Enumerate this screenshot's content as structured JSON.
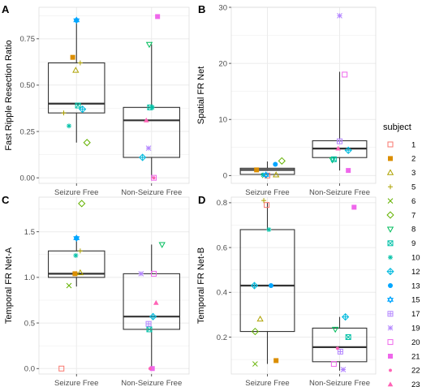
{
  "chart_data": [
    {
      "type": "box",
      "panel": "A",
      "ylabel": "Fast Ripple Resection Ratio",
      "xlabel": "",
      "categories": [
        "Seizure Free",
        "Non-Seizure Free"
      ],
      "ylim": [
        -0.03,
        0.92
      ],
      "yticks": [
        0.0,
        0.25,
        0.5,
        0.75
      ],
      "ytick_labels": [
        "0.00",
        "0.25",
        "0.50",
        "0.75"
      ],
      "grid": true,
      "boxes": [
        {
          "category": "Seizure Free",
          "min": 0.19,
          "q1": 0.35,
          "median": 0.4,
          "q3": 0.62,
          "max": 0.85
        },
        {
          "category": "Non-Seizure Free",
          "min": 0.0,
          "q1": 0.11,
          "median": 0.31,
          "q3": 0.38,
          "max": 0.72
        }
      ],
      "points": [
        {
          "group": "Seizure Free",
          "subject": "2",
          "y": 0.65,
          "jitter": -0.05
        },
        {
          "group": "Seizure Free",
          "subject": "3",
          "y": 0.58,
          "jitter": -0.01
        },
        {
          "group": "Seizure Free",
          "subject": "5",
          "y": 0.62,
          "jitter": 0.05
        },
        {
          "group": "Seizure Free",
          "subject": "5",
          "y": 0.35,
          "jitter": -0.17
        },
        {
          "group": "Seizure Free",
          "subject": "7",
          "y": 0.19,
          "jitter": 0.14
        },
        {
          "group": "Seizure Free",
          "subject": "9",
          "y": 0.39,
          "jitter": 0.02
        },
        {
          "group": "Seizure Free",
          "subject": "10",
          "y": 0.28,
          "jitter": -0.1
        },
        {
          "group": "Seizure Free",
          "subject": "12",
          "y": 0.37,
          "jitter": 0.08
        },
        {
          "group": "Seizure Free",
          "subject": "13",
          "y": 0.85,
          "jitter": 0.0
        },
        {
          "group": "Seizure Free",
          "subject": "15",
          "y": 0.85,
          "jitter": 0.0
        },
        {
          "group": "Non-Seizure Free",
          "subject": "8",
          "y": 0.72,
          "jitter": -0.03
        },
        {
          "group": "Non-Seizure Free",
          "subject": "9",
          "y": 0.38,
          "jitter": -0.02
        },
        {
          "group": "Non-Seizure Free",
          "subject": "10",
          "y": 0.38,
          "jitter": 0.01
        },
        {
          "group": "Non-Seizure Free",
          "subject": "12",
          "y": 0.11,
          "jitter": -0.12
        },
        {
          "group": "Non-Seizure Free",
          "subject": "19",
          "y": 0.16,
          "jitter": -0.04
        },
        {
          "group": "Non-Seizure Free",
          "subject": "20",
          "y": 0.0,
          "jitter": 0.03
        },
        {
          "group": "Non-Seizure Free",
          "subject": "21",
          "y": 0.87,
          "jitter": 0.08
        },
        {
          "group": "Non-Seizure Free",
          "subject": "22",
          "y": 0.0,
          "jitter": 0.03
        },
        {
          "group": "Non-Seizure Free",
          "subject": "23",
          "y": 0.31,
          "jitter": -0.07
        }
      ]
    },
    {
      "type": "box",
      "panel": "B",
      "ylabel": "Spatial FR Net",
      "xlabel": "",
      "categories": [
        "Seizure Free",
        "Non-Seizure Free"
      ],
      "ylim": [
        -1.4,
        30.0
      ],
      "yticks": [
        0,
        10,
        20,
        30
      ],
      "ytick_labels": [
        "0",
        "10",
        "20",
        "30"
      ],
      "grid": true,
      "boxes": [
        {
          "category": "Seizure Free",
          "min": 0.0,
          "q1": 0.2,
          "median": 1.0,
          "q3": 1.3,
          "max": 2.5
        },
        {
          "category": "Non-Seizure Free",
          "min": 0.9,
          "q1": 3.2,
          "median": 4.8,
          "q3": 6.2,
          "max": 18.5
        }
      ],
      "points": [
        {
          "group": "Seizure Free",
          "subject": "1",
          "y": 0.0,
          "jitter": 0.0
        },
        {
          "group": "Seizure Free",
          "subject": "2",
          "y": 1.0,
          "jitter": -0.15
        },
        {
          "group": "Seizure Free",
          "subject": "3",
          "y": 0.1,
          "jitter": 0.12
        },
        {
          "group": "Seizure Free",
          "subject": "6",
          "y": 0.0,
          "jitter": -0.04
        },
        {
          "group": "Seizure Free",
          "subject": "7",
          "y": 2.6,
          "jitter": 0.2
        },
        {
          "group": "Seizure Free",
          "subject": "10",
          "y": 0.1,
          "jitter": -0.06
        },
        {
          "group": "Seizure Free",
          "subject": "13",
          "y": 2.0,
          "jitter": 0.11
        },
        {
          "group": "Seizure Free",
          "subject": "15",
          "y": 0.1,
          "jitter": -0.02
        },
        {
          "group": "Non-Seizure Free",
          "subject": "8",
          "y": 2.8,
          "jitter": -0.1
        },
        {
          "group": "Non-Seizure Free",
          "subject": "9",
          "y": 2.9,
          "jitter": -0.08
        },
        {
          "group": "Non-Seizure Free",
          "subject": "12",
          "y": 4.5,
          "jitter": 0.12
        },
        {
          "group": "Non-Seizure Free",
          "subject": "17",
          "y": 6.1,
          "jitter": 0.0
        },
        {
          "group": "Non-Seizure Free",
          "subject": "19",
          "y": 28.5,
          "jitter": 0.0
        },
        {
          "group": "Non-Seizure Free",
          "subject": "20",
          "y": 18.0,
          "jitter": 0.07
        },
        {
          "group": "Non-Seizure Free",
          "subject": "21",
          "y": 0.9,
          "jitter": 0.12
        },
        {
          "group": "Non-Seizure Free",
          "subject": "23",
          "y": 4.8,
          "jitter": -0.02
        }
      ]
    },
    {
      "type": "box",
      "panel": "C",
      "ylabel": "Temporal FR Net-A",
      "xlabel": "",
      "categories": [
        "Seizure Free",
        "Non-Seizure Free"
      ],
      "ylim": [
        -0.06,
        1.88
      ],
      "yticks": [
        0.0,
        0.5,
        1.0,
        1.5
      ],
      "ytick_labels": [
        "0.0",
        "0.5",
        "1.0",
        "1.5"
      ],
      "grid": true,
      "boxes": [
        {
          "category": "Seizure Free",
          "min": 0.9,
          "q1": 1.0,
          "median": 1.04,
          "q3": 1.29,
          "max": 1.43
        },
        {
          "category": "Non-Seizure Free",
          "min": 0.0,
          "q1": 0.43,
          "median": 0.57,
          "q3": 1.04,
          "max": 1.36
        }
      ],
      "points": [
        {
          "group": "Seizure Free",
          "subject": "1",
          "y": 0.0,
          "jitter": -0.2
        },
        {
          "group": "Seizure Free",
          "subject": "2",
          "y": 1.04,
          "jitter": -0.02
        },
        {
          "group": "Seizure Free",
          "subject": "3",
          "y": 1.05,
          "jitter": 0.05
        },
        {
          "group": "Seizure Free",
          "subject": "5",
          "y": 1.29,
          "jitter": 0.05
        },
        {
          "group": "Seizure Free",
          "subject": "6",
          "y": 0.91,
          "jitter": -0.1
        },
        {
          "group": "Seizure Free",
          "subject": "7",
          "y": 1.81,
          "jitter": 0.07
        },
        {
          "group": "Seizure Free",
          "subject": "10",
          "y": 1.24,
          "jitter": -0.01
        },
        {
          "group": "Seizure Free",
          "subject": "13",
          "y": 1.43,
          "jitter": 0.0
        },
        {
          "group": "Seizure Free",
          "subject": "15",
          "y": 1.43,
          "jitter": 0.0
        },
        {
          "group": "Non-Seizure Free",
          "subject": "8",
          "y": 1.36,
          "jitter": 0.14
        },
        {
          "group": "Non-Seizure Free",
          "subject": "9",
          "y": 0.43,
          "jitter": -0.03
        },
        {
          "group": "Non-Seizure Free",
          "subject": "12",
          "y": 0.57,
          "jitter": 0.02
        },
        {
          "group": "Non-Seizure Free",
          "subject": "17",
          "y": 0.49,
          "jitter": -0.04
        },
        {
          "group": "Non-Seizure Free",
          "subject": "19",
          "y": 1.04,
          "jitter": -0.14
        },
        {
          "group": "Non-Seizure Free",
          "subject": "20",
          "y": 1.04,
          "jitter": 0.03
        },
        {
          "group": "Non-Seizure Free",
          "subject": "21",
          "y": 0.0,
          "jitter": 0.01
        },
        {
          "group": "Non-Seizure Free",
          "subject": "22",
          "y": 0.0,
          "jitter": -0.02
        },
        {
          "group": "Non-Seizure Free",
          "subject": "23",
          "y": 0.72,
          "jitter": 0.06
        }
      ]
    },
    {
      "type": "box",
      "panel": "D",
      "ylabel": "Temporal FR Net-B",
      "xlabel": "",
      "categories": [
        "Seizure Free",
        "Non-Seizure Free"
      ],
      "ylim": [
        0.035,
        0.825
      ],
      "yticks": [
        0.2,
        0.4,
        0.6,
        0.8
      ],
      "ytick_labels": [
        "0.2",
        "0.4",
        "0.6",
        "0.8"
      ],
      "grid": true,
      "boxes": [
        {
          "category": "Seizure Free",
          "min": 0.08,
          "q1": 0.225,
          "median": 0.43,
          "q3": 0.68,
          "max": 0.8
        },
        {
          "category": "Non-Seizure Free",
          "min": 0.05,
          "q1": 0.09,
          "median": 0.155,
          "q3": 0.24,
          "max": 0.29
        }
      ],
      "points": [
        {
          "group": "Seizure Free",
          "subject": "1",
          "y": 0.79,
          "jitter": -0.01
        },
        {
          "group": "Seizure Free",
          "subject": "2",
          "y": 0.095,
          "jitter": 0.12
        },
        {
          "group": "Seizure Free",
          "subject": "3",
          "y": 0.28,
          "jitter": -0.1
        },
        {
          "group": "Seizure Free",
          "subject": "5",
          "y": 0.81,
          "jitter": -0.05
        },
        {
          "group": "Seizure Free",
          "subject": "6",
          "y": 0.08,
          "jitter": -0.17
        },
        {
          "group": "Seizure Free",
          "subject": "7",
          "y": 0.225,
          "jitter": -0.17
        },
        {
          "group": "Seizure Free",
          "subject": "10",
          "y": 0.68,
          "jitter": 0.02
        },
        {
          "group": "Seizure Free",
          "subject": "12",
          "y": 0.43,
          "jitter": -0.18
        },
        {
          "group": "Seizure Free",
          "subject": "13",
          "y": 0.43,
          "jitter": 0.05
        },
        {
          "group": "Non-Seizure Free",
          "subject": "8",
          "y": 0.235,
          "jitter": -0.06
        },
        {
          "group": "Non-Seizure Free",
          "subject": "9",
          "y": 0.2,
          "jitter": 0.12
        },
        {
          "group": "Non-Seizure Free",
          "subject": "12",
          "y": 0.29,
          "jitter": 0.08
        },
        {
          "group": "Non-Seizure Free",
          "subject": "17",
          "y": 0.135,
          "jitter": 0.01
        },
        {
          "group": "Non-Seizure Free",
          "subject": "19",
          "y": 0.055,
          "jitter": 0.05
        },
        {
          "group": "Non-Seizure Free",
          "subject": "20",
          "y": 0.08,
          "jitter": -0.08
        },
        {
          "group": "Non-Seizure Free",
          "subject": "21",
          "y": 0.78,
          "jitter": 0.2
        },
        {
          "group": "Non-Seizure Free",
          "subject": "22",
          "y": 0.15,
          "jitter": -0.03
        }
      ]
    }
  ],
  "legend": {
    "title": "subject",
    "placement": "right",
    "entries": [
      {
        "label": "1",
        "shape": "square-open",
        "color": "#F8766D"
      },
      {
        "label": "2",
        "shape": "square-filled",
        "color": "#DB8E00"
      },
      {
        "label": "3",
        "shape": "triangle-open",
        "color": "#AEA200"
      },
      {
        "label": "5",
        "shape": "plus",
        "color": "#AEA200"
      },
      {
        "label": "6",
        "shape": "cross",
        "color": "#64B200"
      },
      {
        "label": "7",
        "shape": "diamond-open",
        "color": "#64B200"
      },
      {
        "label": "8",
        "shape": "triangle-down-open",
        "color": "#00BD5C"
      },
      {
        "label": "9",
        "shape": "square-cross",
        "color": "#00C1A7"
      },
      {
        "label": "10",
        "shape": "asterisk",
        "color": "#00C1A7"
      },
      {
        "label": "12",
        "shape": "diamond-plus",
        "color": "#00BADE"
      },
      {
        "label": "13",
        "shape": "circle-filled",
        "color": "#00A6FF"
      },
      {
        "label": "15",
        "shape": "star-of-david",
        "color": "#00A6FF"
      },
      {
        "label": "17",
        "shape": "square-plus",
        "color": "#B385FF"
      },
      {
        "label": "19",
        "shape": "square-x",
        "color": "#B385FF"
      },
      {
        "label": "20",
        "shape": "square-open",
        "color": "#EF67EB"
      },
      {
        "label": "21",
        "shape": "square-filled",
        "color": "#EF67EB"
      },
      {
        "label": "22",
        "shape": "circle-small",
        "color": "#FF63B6"
      },
      {
        "label": "23",
        "shape": "triangle-filled",
        "color": "#FF63B6"
      }
    ]
  }
}
